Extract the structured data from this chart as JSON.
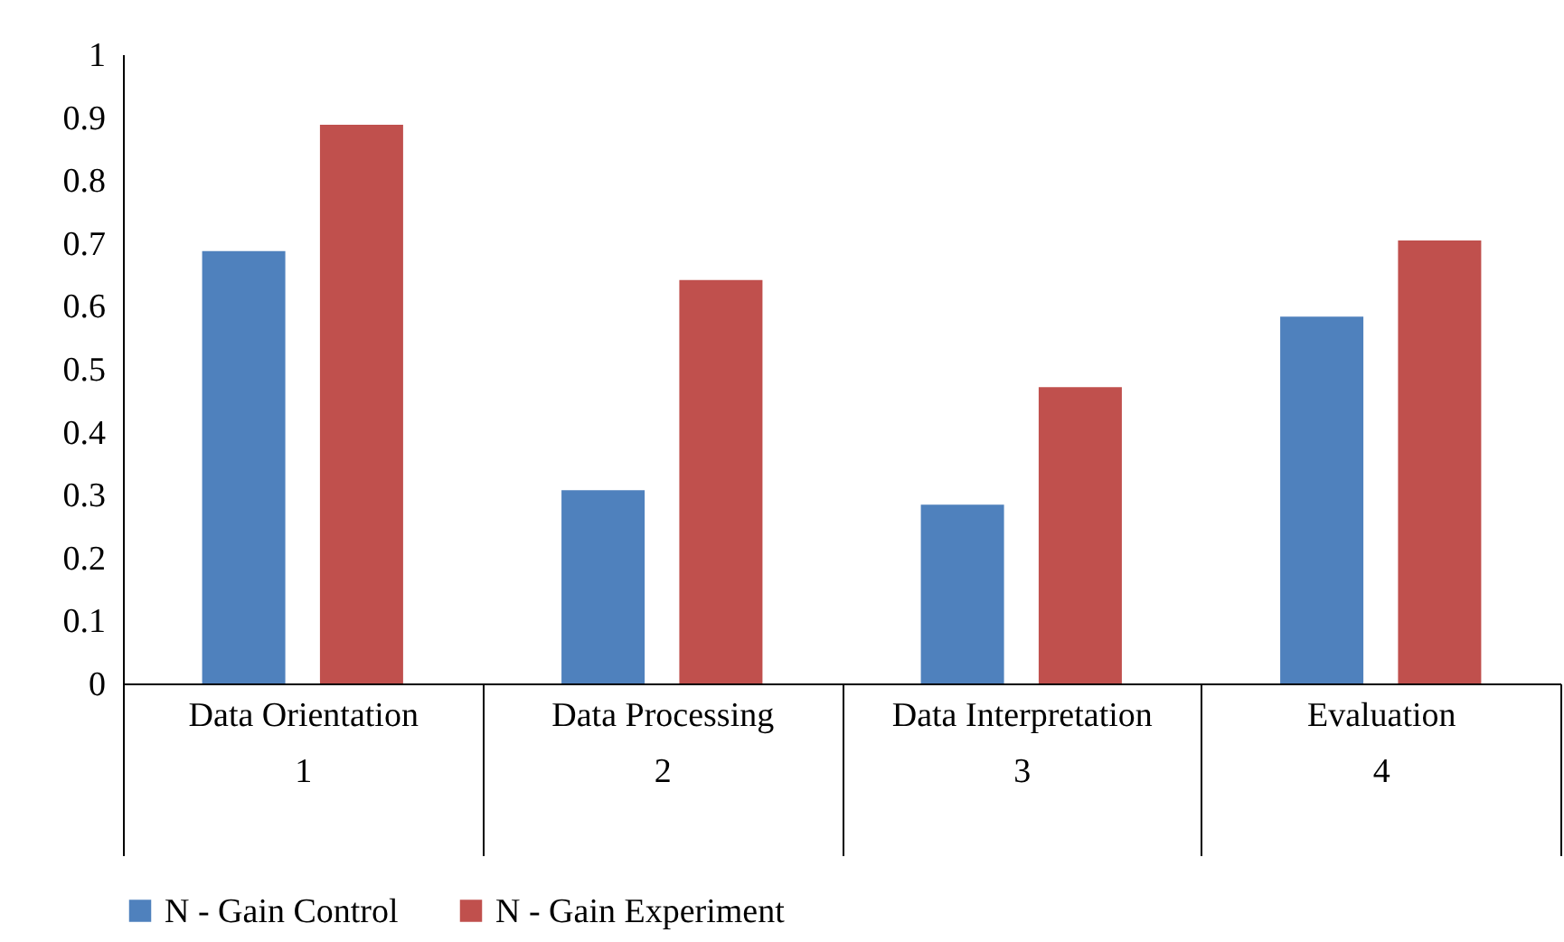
{
  "chart_data": {
    "type": "bar",
    "categories": [
      "Data Orientation\n1",
      "Data Processing\n2",
      "Data Interpretation\n3",
      "Evaluation\n4"
    ],
    "series": [
      {
        "name": "N - Gain Control",
        "color": "#4f81bd",
        "values": [
          0.687,
          0.307,
          0.284,
          0.583
        ]
      },
      {
        "name": "N - Gain Experiment",
        "color": "#c0504d",
        "values": [
          0.888,
          0.641,
          0.471,
          0.704
        ]
      }
    ],
    "ylim": [
      0,
      1
    ],
    "yticks": [
      0,
      0.1,
      0.2,
      0.3,
      0.4,
      0.5,
      0.6,
      0.7,
      0.8,
      0.9,
      1
    ],
    "grid": false,
    "legend": "bottom"
  }
}
